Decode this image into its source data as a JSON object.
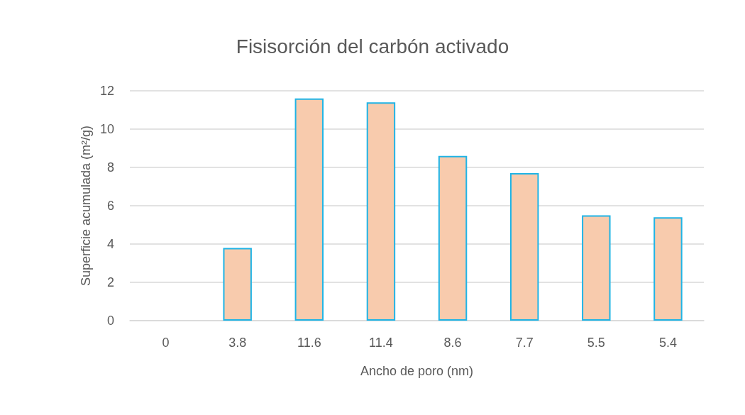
{
  "chart_data": {
    "type": "bar",
    "title": "Fisisorción del carbón activado",
    "xlabel": "Ancho de poro (nm)",
    "ylabel": "Superficie acumulada (m²/g)",
    "categories": [
      "0",
      "3.8",
      "11.6",
      "11.4",
      "8.6",
      "7.7",
      "5.5",
      "5.4"
    ],
    "values": [
      0,
      3.8,
      11.6,
      11.4,
      8.6,
      7.7,
      5.5,
      5.4
    ],
    "color": "#f8cbad",
    "ylim": [
      0,
      12
    ],
    "yticks": [
      0,
      2,
      4,
      6,
      8,
      10,
      12
    ],
    "grid": "y"
  }
}
